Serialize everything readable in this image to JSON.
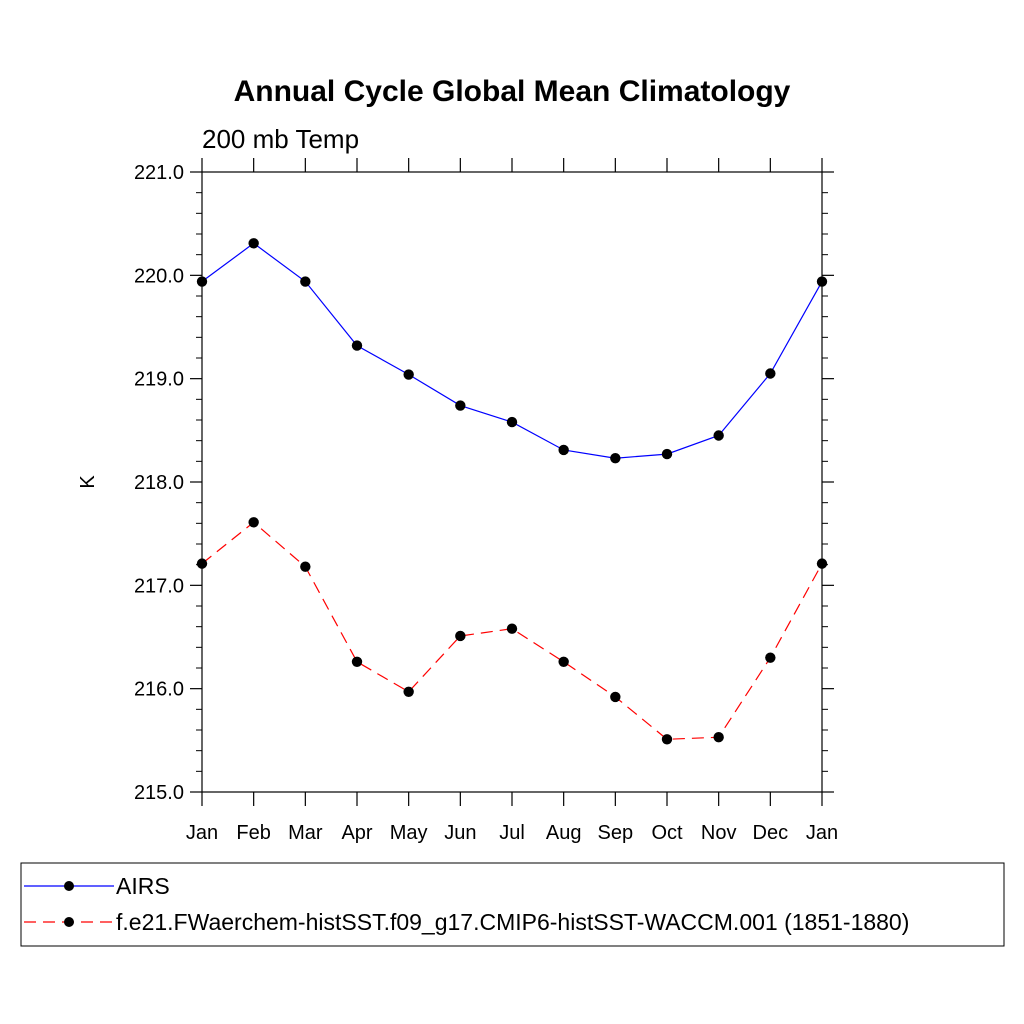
{
  "chart_data": {
    "type": "line",
    "title": "Annual Cycle Global Mean Climatology",
    "subtitle": "200 mb Temp",
    "ylabel": "K",
    "xlabel": "",
    "ylim": [
      215.0,
      221.0
    ],
    "ytick_values": [
      215.0,
      216.0,
      217.0,
      218.0,
      219.0,
      220.0,
      221.0
    ],
    "ytick_labels": [
      "215.0",
      "216.0",
      "217.0",
      "218.0",
      "219.0",
      "220.0",
      "221.0"
    ],
    "categories": [
      "Jan",
      "Feb",
      "Mar",
      "Apr",
      "May",
      "Jun",
      "Jul",
      "Aug",
      "Sep",
      "Oct",
      "Nov",
      "Dec",
      "Jan"
    ],
    "series": [
      {
        "name": "AIRS",
        "color": "#0000ff",
        "dash": "solid",
        "values": [
          219.94,
          220.31,
          219.94,
          219.32,
          219.04,
          218.74,
          218.58,
          218.31,
          218.23,
          218.27,
          218.45,
          219.05,
          219.94
        ]
      },
      {
        "name": "f.e21.FWaerchem-histSST.f09_g17.CMIP6-histSST-WACCM.001 (1851-1880)",
        "color": "#ff0000",
        "dash": "dashed",
        "values": [
          217.21,
          217.61,
          217.18,
          216.26,
          215.97,
          216.51,
          216.58,
          216.26,
          215.92,
          215.51,
          215.53,
          216.3,
          217.21
        ]
      }
    ],
    "marker_color": "#000000",
    "legend_location": "bottom"
  }
}
